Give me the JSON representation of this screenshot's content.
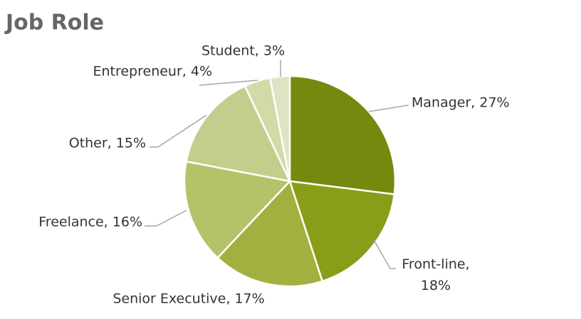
{
  "chart_data": {
    "type": "pie",
    "title": "Job Role",
    "labels": [
      "Manager, 27%",
      "Front-line, 18%",
      "Senior Executive, 17%",
      "Freelance, 16%",
      "Other, 15%",
      "Entrepreneur, 4%",
      "Student, 3%"
    ],
    "values": [
      27,
      18,
      17,
      16,
      15,
      4,
      3
    ],
    "colors": [
      "#76890f",
      "#8a9d18",
      "#a2b040",
      "#b5c26a",
      "#c4cd8c",
      "#d2daa8",
      "#dfe3c3"
    ]
  }
}
